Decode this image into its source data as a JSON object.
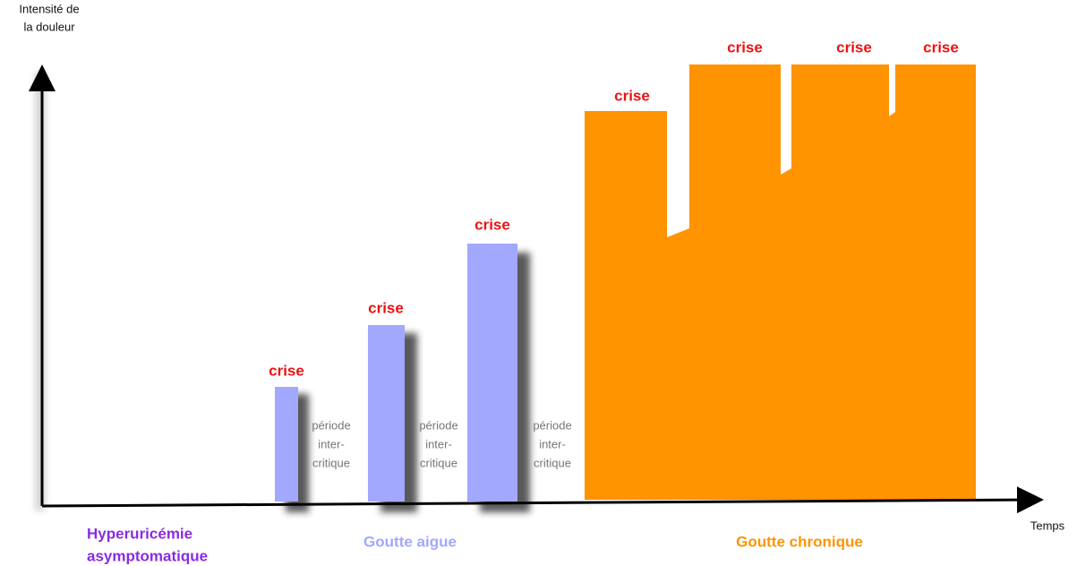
{
  "axes": {
    "y_label": [
      "Intensité de",
      "la douleur"
    ],
    "x_label": "Temps"
  },
  "crises": [
    "crise",
    "crise",
    "crise",
    "crise",
    "crise",
    "crise",
    "crise"
  ],
  "periods": [
    [
      "période",
      "inter-",
      "critique"
    ],
    [
      "période",
      "inter-",
      "critique"
    ],
    [
      "période",
      "inter-",
      "critique"
    ]
  ],
  "phases": {
    "asymptomatic": [
      "Hyperuricémie",
      "asymptomatique"
    ],
    "acute": "Goutte aigue",
    "chronic": "Goutte chronique"
  }
}
